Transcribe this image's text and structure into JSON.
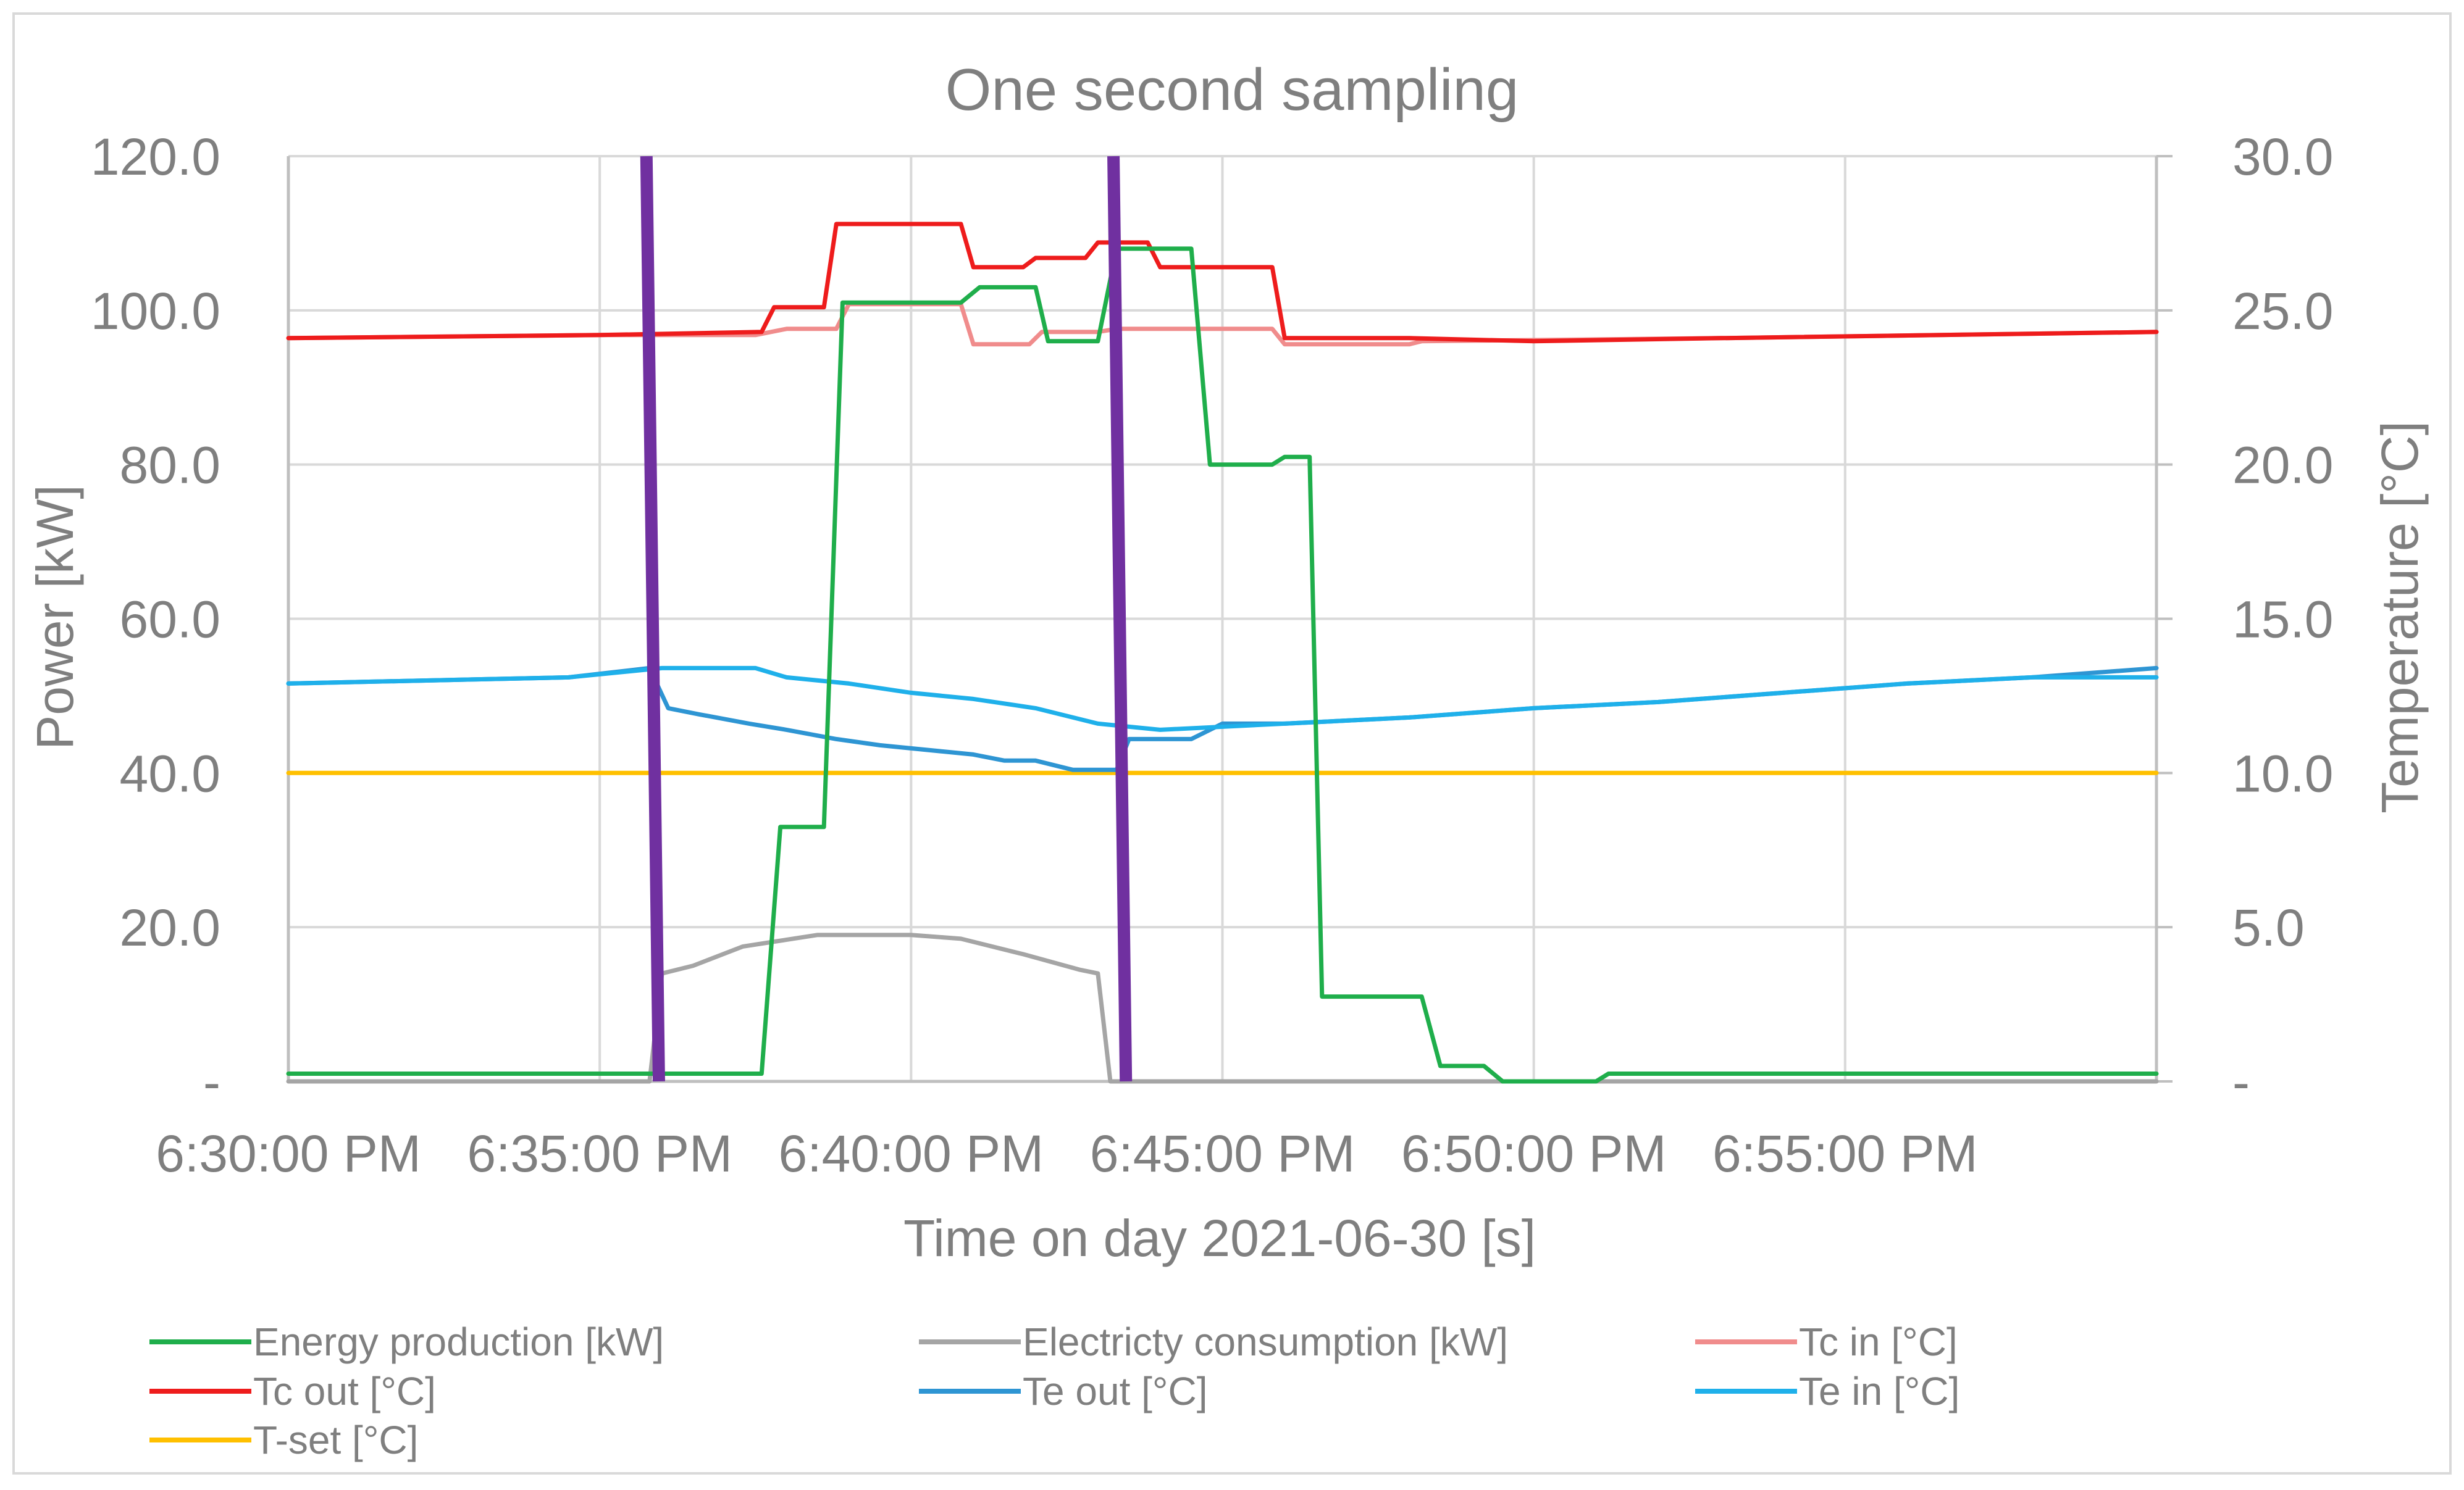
{
  "chart_data": {
    "type": "line",
    "title": "One second sampling",
    "xlabel": "Time on day 2021-06-30 [s]",
    "ylabel_left": "Power [kW]",
    "ylabel_right": "Temperature [°C]",
    "x_unit": "minutes after 6:30:00 PM",
    "xlim": [
      0,
      30
    ],
    "ylim_left": [
      0,
      120
    ],
    "ylim_right": [
      0,
      30
    ],
    "grid": true,
    "legend_position": "bottom",
    "x_ticks": [
      {
        "value": 0,
        "label": "6:30:00 PM"
      },
      {
        "value": 5,
        "label": "6:35:00 PM"
      },
      {
        "value": 10,
        "label": "6:40:00 PM"
      },
      {
        "value": 15,
        "label": "6:45:00 PM"
      },
      {
        "value": 20,
        "label": "6:50:00 PM"
      },
      {
        "value": 25,
        "label": "6:55:00 PM"
      }
    ],
    "y_ticks_left": [
      {
        "value": 0,
        "label": "-"
      },
      {
        "value": 20,
        "label": "20.0"
      },
      {
        "value": 40,
        "label": "40.0"
      },
      {
        "value": 60,
        "label": "60.0"
      },
      {
        "value": 80,
        "label": "80.0"
      },
      {
        "value": 100,
        "label": "100.0"
      },
      {
        "value": 120,
        "label": "120.0"
      }
    ],
    "y_ticks_right": [
      {
        "value": 0,
        "label": "-"
      },
      {
        "value": 5,
        "label": "5.0"
      },
      {
        "value": 10,
        "label": "10.0"
      },
      {
        "value": 15,
        "label": "15.0"
      },
      {
        "value": 20,
        "label": "20.0"
      },
      {
        "value": 25,
        "label": "25.0"
      },
      {
        "value": 30,
        "label": "30.0"
      }
    ],
    "series": [
      {
        "name": "Energy production [kW]",
        "axis": "left",
        "color": "#1fae4b",
        "x": [
          0,
          7.6,
          7.9,
          8.6,
          8.9,
          10.8,
          11.1,
          12,
          12.2,
          13,
          13.3,
          14.5,
          14.8,
          15.8,
          16.0,
          16.4,
          16.6,
          18.2,
          18.5,
          19.2,
          19.5,
          21.0,
          21.2,
          30
        ],
        "y": [
          1,
          1,
          33,
          33,
          101,
          101,
          103,
          103,
          96,
          96,
          108,
          108,
          80,
          80,
          81,
          81,
          11,
          11,
          2,
          2,
          0,
          0,
          1,
          1
        ]
      },
      {
        "name": "Electricty consumption [kW]",
        "axis": "left",
        "color": "#a5a5a5",
        "x": [
          0,
          5.8,
          6.0,
          6.5,
          7.3,
          8.5,
          10.0,
          10.8,
          11.8,
          12.7,
          13.0,
          13.2,
          30
        ],
        "y": [
          0,
          0,
          14,
          15,
          17.5,
          19,
          19,
          18.5,
          16.5,
          14.5,
          14,
          0,
          0
        ]
      },
      {
        "name": "Tc in [°C]",
        "axis": "right",
        "color": "#f08c8c",
        "x": [
          0,
          5,
          7.5,
          8.0,
          8.8,
          9.0,
          10.8,
          11.0,
          11.9,
          12.1,
          13.0,
          13.3,
          15.8,
          16.0,
          18.0,
          18.2,
          23,
          30
        ],
        "y": [
          24.1,
          24.2,
          24.2,
          24.4,
          24.4,
          25.2,
          25.2,
          23.9,
          23.9,
          24.3,
          24.3,
          24.4,
          24.4,
          23.9,
          23.9,
          24.0,
          24.1,
          24.3
        ]
      },
      {
        "name": "Tc out [°C]",
        "axis": "right",
        "color": "#ee1c1c",
        "x": [
          0,
          5,
          7.6,
          7.8,
          8.6,
          8.8,
          10.8,
          11.0,
          11.8,
          12.0,
          12.8,
          13.0,
          13.8,
          14.0,
          15.8,
          16.0,
          18,
          20,
          23,
          30
        ],
        "y": [
          24.1,
          24.2,
          24.3,
          25.1,
          25.1,
          27.8,
          27.8,
          26.4,
          26.4,
          26.7,
          26.7,
          27.2,
          27.2,
          26.4,
          26.4,
          24.1,
          24.1,
          24.0,
          24.1,
          24.3
        ]
      },
      {
        "name": "Te out [°C]",
        "axis": "right",
        "color": "#2e95d3",
        "x": [
          0,
          4.5,
          5.8,
          6.1,
          6.6,
          7.4,
          8.0,
          8.8,
          9.5,
          10.5,
          11.0,
          11.5,
          12.0,
          12.6,
          13.0,
          13.3,
          13.5,
          14.5,
          15.0,
          16.0,
          18.0,
          20.0,
          22.0,
          24.0,
          26.0,
          28.0,
          30.0
        ],
        "y": [
          12.9,
          13.1,
          13.4,
          12.1,
          11.9,
          11.6,
          11.4,
          11.1,
          10.9,
          10.7,
          10.6,
          10.4,
          10.4,
          10.1,
          10.1,
          10.1,
          11.1,
          11.1,
          11.6,
          11.6,
          11.8,
          12.1,
          12.3,
          12.6,
          12.9,
          13.1,
          13.4
        ]
      },
      {
        "name": "Te in [°C]",
        "axis": "right",
        "color": "#1fb0ea",
        "x": [
          0,
          4.5,
          6,
          7.5,
          8.0,
          9.0,
          10.0,
          11.0,
          12.0,
          13.0,
          14.0,
          16.0,
          18.0,
          20.0,
          22.0,
          24.0,
          26.0,
          28.0,
          30.0
        ],
        "y": [
          12.9,
          13.1,
          13.4,
          13.4,
          13.1,
          12.9,
          12.6,
          12.4,
          12.1,
          11.6,
          11.4,
          11.6,
          11.8,
          12.1,
          12.3,
          12.6,
          12.9,
          13.1,
          13.1
        ]
      },
      {
        "name": "T-set [°C]",
        "axis": "right",
        "color": "#ffc000",
        "x": [
          0,
          30
        ],
        "y": [
          10,
          10
        ]
      }
    ],
    "markers": [
      {
        "name": "window-start",
        "color": "#7030a0",
        "x_top": 5.75,
        "x_bottom": 5.95
      },
      {
        "name": "window-end",
        "color": "#7030a0",
        "x_top": 13.25,
        "x_bottom": 13.45
      }
    ]
  }
}
